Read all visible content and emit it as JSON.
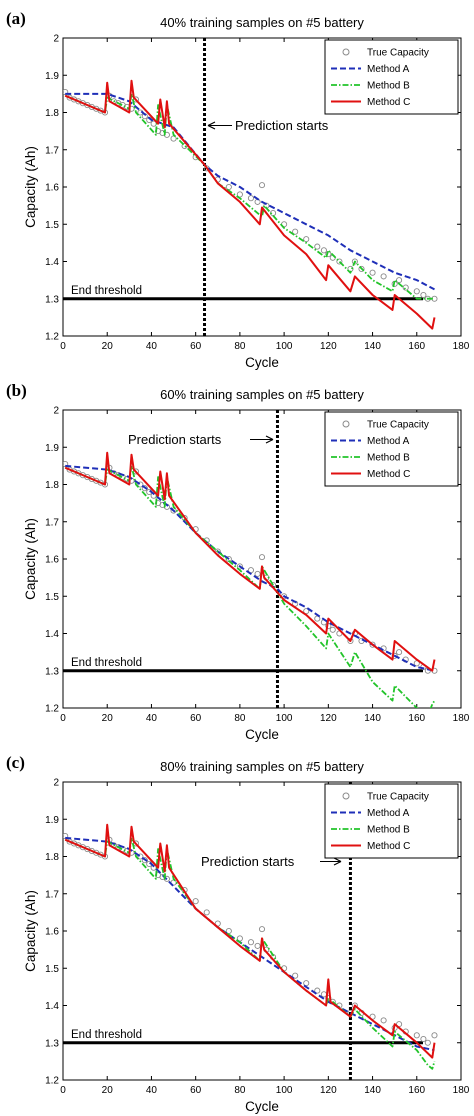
{
  "chart_data": [
    {
      "type": "line",
      "panel_label": "(a)",
      "title": "40% training samples on #5 battery",
      "xlabel": "Cycle",
      "ylabel": "Capacity (Ah)",
      "xlim": [
        0,
        180
      ],
      "ylim": [
        1.2,
        2.0
      ],
      "xticks": [
        "0",
        "20",
        "40",
        "60",
        "80",
        "100",
        "120",
        "140",
        "160",
        "180"
      ],
      "yticks": [
        "1.2",
        "1.3",
        "1.4",
        "1.5",
        "1.6",
        "1.7",
        "1.8",
        "1.9",
        "2"
      ],
      "prediction_start_cycle": 64,
      "prediction_label": "Prediction starts",
      "threshold": 1.3,
      "threshold_label": "End threshold",
      "legend": [
        "True Capacity",
        "Method A",
        "Method B",
        "Method C"
      ],
      "legend_position": "top-right",
      "series": [
        {
          "name": "True Capacity",
          "color": "#8a8a8a",
          "style": "circle-markers",
          "x": [
            1,
            3,
            5,
            7,
            9,
            11,
            13,
            15,
            17,
            19,
            21,
            23,
            25,
            27,
            29,
            31,
            33,
            35,
            37,
            39,
            41,
            43,
            45,
            47,
            50,
            55,
            60,
            65,
            70,
            75,
            80,
            85,
            88,
            90,
            92,
            95,
            100,
            105,
            110,
            115,
            118,
            120,
            122,
            125,
            130,
            132,
            135,
            140,
            145,
            150,
            152,
            155,
            160,
            163,
            165,
            168
          ],
          "y": [
            1.855,
            1.84,
            1.835,
            1.83,
            1.825,
            1.82,
            1.815,
            1.81,
            1.805,
            1.8,
            1.845,
            1.83,
            1.825,
            1.82,
            1.815,
            1.81,
            1.835,
            1.8,
            1.79,
            1.78,
            1.77,
            1.75,
            1.745,
            1.74,
            1.73,
            1.71,
            1.68,
            1.65,
            1.62,
            1.6,
            1.58,
            1.57,
            1.56,
            1.605,
            1.55,
            1.53,
            1.5,
            1.48,
            1.46,
            1.44,
            1.43,
            1.42,
            1.41,
            1.4,
            1.38,
            1.4,
            1.38,
            1.37,
            1.36,
            1.34,
            1.35,
            1.33,
            1.32,
            1.31,
            1.3,
            1.3
          ]
        },
        {
          "name": "Method A",
          "color": "#1f2fb8",
          "style": "dashed",
          "x": [
            1,
            20,
            30,
            40,
            50,
            64,
            70,
            80,
            90,
            100,
            110,
            120,
            130,
            140,
            150,
            160,
            168
          ],
          "y": [
            1.85,
            1.85,
            1.83,
            1.78,
            1.76,
            1.66,
            1.63,
            1.6,
            1.56,
            1.53,
            1.5,
            1.47,
            1.43,
            1.4,
            1.37,
            1.35,
            1.325
          ]
        },
        {
          "name": "Method B",
          "color": "#22c42a",
          "style": "dash-dot",
          "x": [
            1,
            19,
            20,
            30,
            31,
            33,
            42,
            43,
            46,
            47,
            50,
            64,
            70,
            80,
            90,
            91,
            100,
            110,
            119,
            120,
            130,
            132,
            140,
            149,
            150,
            160,
            165,
            168
          ],
          "y": [
            1.845,
            1.8,
            1.84,
            1.81,
            1.85,
            1.8,
            1.74,
            1.82,
            1.74,
            1.82,
            1.74,
            1.66,
            1.61,
            1.57,
            1.52,
            1.55,
            1.49,
            1.45,
            1.41,
            1.43,
            1.37,
            1.4,
            1.35,
            1.32,
            1.35,
            1.3,
            1.3,
            1.3
          ]
        },
        {
          "name": "Method C",
          "color": "#e01010",
          "style": "solid",
          "x": [
            1,
            19,
            20,
            21,
            30,
            31,
            32,
            43,
            44,
            46,
            47,
            48,
            64,
            70,
            80,
            89,
            90,
            100,
            110,
            119,
            120,
            130,
            132,
            140,
            149,
            150,
            160,
            167,
            168
          ],
          "y": [
            1.845,
            1.8,
            1.88,
            1.83,
            1.8,
            1.885,
            1.84,
            1.77,
            1.835,
            1.76,
            1.83,
            1.77,
            1.66,
            1.61,
            1.56,
            1.5,
            1.545,
            1.47,
            1.42,
            1.35,
            1.39,
            1.32,
            1.36,
            1.31,
            1.27,
            1.31,
            1.26,
            1.22,
            1.25
          ]
        }
      ]
    },
    {
      "type": "line",
      "panel_label": "(b)",
      "title": "60% training samples on #5 battery",
      "xlabel": "Cycle",
      "ylabel": "Capacity (Ah)",
      "xlim": [
        0,
        180
      ],
      "ylim": [
        1.2,
        2.0
      ],
      "xticks": [
        "0",
        "20",
        "40",
        "60",
        "80",
        "100",
        "120",
        "140",
        "160",
        "180"
      ],
      "yticks": [
        "1.2",
        "1.3",
        "1.4",
        "1.5",
        "1.6",
        "1.7",
        "1.8",
        "1.9",
        "2"
      ],
      "prediction_start_cycle": 97,
      "prediction_label": "Prediction starts",
      "threshold": 1.3,
      "threshold_label": "End threshold",
      "legend": [
        "True Capacity",
        "Method A",
        "Method B",
        "Method C"
      ],
      "legend_position": "top-right",
      "series": [
        {
          "name": "True Capacity",
          "color": "#8a8a8a",
          "style": "circle-markers",
          "x": [
            1,
            3,
            5,
            7,
            9,
            11,
            13,
            15,
            17,
            19,
            21,
            23,
            25,
            27,
            29,
            31,
            33,
            35,
            37,
            39,
            41,
            43,
            45,
            47,
            50,
            55,
            60,
            65,
            70,
            75,
            80,
            85,
            88,
            90,
            92,
            95,
            100,
            105,
            110,
            115,
            118,
            120,
            122,
            125,
            130,
            132,
            135,
            140,
            145,
            150,
            152,
            155,
            160,
            163,
            165,
            168
          ],
          "y": [
            1.855,
            1.84,
            1.835,
            1.83,
            1.825,
            1.82,
            1.815,
            1.81,
            1.805,
            1.8,
            1.845,
            1.83,
            1.825,
            1.82,
            1.815,
            1.81,
            1.835,
            1.8,
            1.79,
            1.78,
            1.77,
            1.75,
            1.745,
            1.74,
            1.73,
            1.71,
            1.68,
            1.65,
            1.62,
            1.6,
            1.58,
            1.57,
            1.56,
            1.605,
            1.55,
            1.53,
            1.5,
            1.48,
            1.46,
            1.44,
            1.43,
            1.42,
            1.41,
            1.4,
            1.38,
            1.4,
            1.38,
            1.37,
            1.36,
            1.34,
            1.35,
            1.33,
            1.32,
            1.31,
            1.3,
            1.3
          ]
        },
        {
          "name": "Method A",
          "color": "#1f2fb8",
          "style": "dashed",
          "x": [
            1,
            20,
            30,
            40,
            50,
            60,
            70,
            80,
            90,
            97,
            100,
            110,
            120,
            130,
            140,
            150,
            160,
            168
          ],
          "y": [
            1.85,
            1.84,
            1.82,
            1.78,
            1.73,
            1.67,
            1.62,
            1.58,
            1.54,
            1.52,
            1.5,
            1.47,
            1.43,
            1.4,
            1.37,
            1.34,
            1.31,
            1.3
          ]
        },
        {
          "name": "Method B",
          "color": "#22c42a",
          "style": "dash-dot",
          "x": [
            1,
            19,
            20,
            30,
            31,
            33,
            42,
            43,
            46,
            47,
            50,
            60,
            70,
            80,
            89,
            90,
            97,
            100,
            110,
            119,
            120,
            130,
            132,
            140,
            149,
            150,
            160,
            165,
            167,
            168
          ],
          "y": [
            1.845,
            1.8,
            1.84,
            1.81,
            1.85,
            1.8,
            1.74,
            1.82,
            1.74,
            1.82,
            1.74,
            1.67,
            1.62,
            1.57,
            1.52,
            1.58,
            1.51,
            1.48,
            1.42,
            1.36,
            1.4,
            1.31,
            1.35,
            1.27,
            1.22,
            1.26,
            1.2,
            1.18,
            1.21,
            1.22
          ]
        },
        {
          "name": "Method C",
          "color": "#e01010",
          "style": "solid",
          "x": [
            1,
            19,
            20,
            21,
            30,
            31,
            32,
            43,
            44,
            46,
            47,
            48,
            60,
            70,
            80,
            89,
            90,
            91,
            97,
            100,
            110,
            119,
            120,
            130,
            132,
            140,
            149,
            150,
            160,
            167,
            168
          ],
          "y": [
            1.845,
            1.8,
            1.885,
            1.83,
            1.8,
            1.88,
            1.84,
            1.77,
            1.835,
            1.76,
            1.83,
            1.77,
            1.67,
            1.61,
            1.56,
            1.52,
            1.58,
            1.55,
            1.51,
            1.49,
            1.45,
            1.4,
            1.44,
            1.38,
            1.41,
            1.37,
            1.33,
            1.38,
            1.33,
            1.3,
            1.33
          ]
        }
      ]
    },
    {
      "type": "line",
      "panel_label": "(c)",
      "title": "80% training samples on #5 battery",
      "xlabel": "Cycle",
      "ylabel": "Capacity (Ah)",
      "xlim": [
        0,
        180
      ],
      "ylim": [
        1.2,
        2.0
      ],
      "xticks": [
        "0",
        "20",
        "40",
        "60",
        "80",
        "100",
        "120",
        "140",
        "160",
        "180"
      ],
      "yticks": [
        "1.2",
        "1.3",
        "1.4",
        "1.5",
        "1.6",
        "1.7",
        "1.8",
        "1.9",
        "2"
      ],
      "prediction_start_cycle": 130,
      "prediction_label": "Prediction starts",
      "threshold": 1.3,
      "threshold_label": "End threshold",
      "legend": [
        "True Capacity",
        "Method A",
        "Method B",
        "Method C"
      ],
      "legend_position": "top-right",
      "series": [
        {
          "name": "True Capacity",
          "color": "#8a8a8a",
          "style": "circle-markers",
          "x": [
            1,
            3,
            5,
            7,
            9,
            11,
            13,
            15,
            17,
            19,
            21,
            23,
            25,
            27,
            29,
            31,
            33,
            35,
            37,
            39,
            41,
            43,
            45,
            47,
            50,
            55,
            60,
            65,
            70,
            75,
            80,
            85,
            88,
            90,
            92,
            95,
            100,
            105,
            110,
            115,
            118,
            120,
            122,
            125,
            130,
            132,
            135,
            140,
            145,
            150,
            152,
            155,
            160,
            163,
            165,
            168
          ],
          "y": [
            1.855,
            1.84,
            1.835,
            1.83,
            1.825,
            1.82,
            1.815,
            1.81,
            1.805,
            1.8,
            1.845,
            1.83,
            1.825,
            1.82,
            1.815,
            1.81,
            1.835,
            1.8,
            1.79,
            1.78,
            1.77,
            1.75,
            1.745,
            1.74,
            1.73,
            1.71,
            1.68,
            1.65,
            1.62,
            1.6,
            1.58,
            1.57,
            1.56,
            1.605,
            1.55,
            1.53,
            1.5,
            1.48,
            1.46,
            1.44,
            1.43,
            1.42,
            1.41,
            1.4,
            1.38,
            1.4,
            1.38,
            1.37,
            1.36,
            1.34,
            1.35,
            1.33,
            1.32,
            1.31,
            1.3,
            1.32
          ]
        },
        {
          "name": "Method A",
          "color": "#1f2fb8",
          "style": "dashed",
          "x": [
            1,
            20,
            30,
            40,
            50,
            60,
            70,
            80,
            90,
            100,
            110,
            120,
            130,
            140,
            150,
            160,
            168
          ],
          "y": [
            1.85,
            1.84,
            1.82,
            1.78,
            1.72,
            1.66,
            1.61,
            1.57,
            1.53,
            1.49,
            1.45,
            1.41,
            1.38,
            1.35,
            1.32,
            1.29,
            1.28
          ]
        },
        {
          "name": "Method B",
          "color": "#22c42a",
          "style": "dash-dot",
          "x": [
            1,
            19,
            20,
            30,
            31,
            33,
            42,
            43,
            46,
            47,
            50,
            60,
            70,
            80,
            89,
            90,
            100,
            110,
            119,
            120,
            130,
            132,
            140,
            149,
            150,
            160,
            165,
            167,
            168
          ],
          "y": [
            1.845,
            1.8,
            1.84,
            1.81,
            1.85,
            1.8,
            1.74,
            1.82,
            1.74,
            1.82,
            1.74,
            1.66,
            1.61,
            1.57,
            1.52,
            1.58,
            1.49,
            1.44,
            1.4,
            1.42,
            1.37,
            1.39,
            1.34,
            1.29,
            1.33,
            1.28,
            1.24,
            1.23,
            1.25
          ]
        },
        {
          "name": "Method C",
          "color": "#e01010",
          "style": "solid",
          "x": [
            1,
            19,
            20,
            21,
            30,
            31,
            32,
            43,
            44,
            46,
            47,
            48,
            60,
            70,
            80,
            89,
            90,
            91,
            100,
            110,
            119,
            120,
            121,
            130,
            132,
            140,
            149,
            150,
            160,
            167,
            168
          ],
          "y": [
            1.845,
            1.8,
            1.885,
            1.83,
            1.8,
            1.88,
            1.84,
            1.77,
            1.835,
            1.76,
            1.83,
            1.77,
            1.66,
            1.61,
            1.56,
            1.52,
            1.58,
            1.55,
            1.49,
            1.44,
            1.4,
            1.47,
            1.41,
            1.37,
            1.4,
            1.36,
            1.32,
            1.35,
            1.3,
            1.26,
            1.3
          ]
        }
      ]
    }
  ]
}
